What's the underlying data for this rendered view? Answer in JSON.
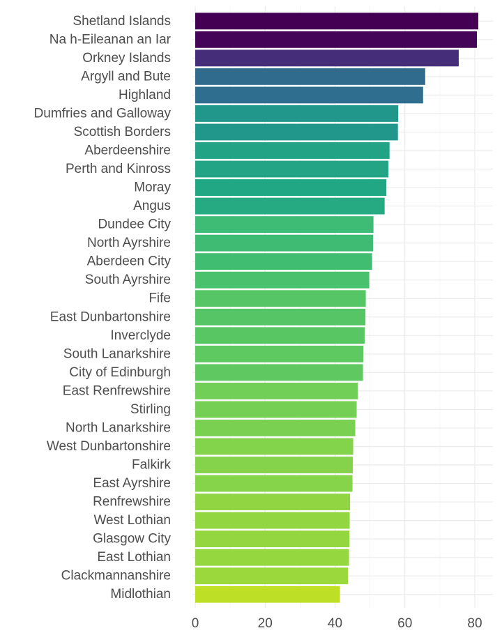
{
  "chart_data": {
    "type": "bar",
    "orientation": "horizontal",
    "categories": [
      "Shetland Islands",
      "Na h-Eileanan an Iar",
      "Orkney Islands",
      "Argyll and Bute",
      "Highland",
      "Dumfries and Galloway",
      "Scottish Borders",
      "Aberdeenshire",
      "Perth and Kinross",
      "Moray",
      "Angus",
      "Dundee City",
      "North Ayrshire",
      "Aberdeen City",
      "South Ayrshire",
      "Fife",
      "East Dunbartonshire",
      "Inverclyde",
      "South Lanarkshire",
      "City of Edinburgh",
      "East Renfrewshire",
      "Stirling",
      "North Lanarkshire",
      "West Dunbartonshire",
      "Falkirk",
      "East Ayrshire",
      "Renfrewshire",
      "West Lothian",
      "Glasgow City",
      "East Lothian",
      "Clackmannanshire",
      "Midlothian"
    ],
    "values": [
      81.0,
      80.6,
      75.4,
      65.8,
      65.2,
      58.1,
      58.0,
      55.6,
      55.3,
      54.7,
      54.2,
      51.0,
      50.9,
      50.6,
      49.8,
      48.8,
      48.7,
      48.5,
      48.1,
      48.0,
      46.5,
      46.2,
      45.8,
      45.2,
      45.1,
      45.0,
      44.3,
      44.2,
      44.1,
      44.0,
      43.7,
      41.4
    ],
    "color_scale": "viridis",
    "color_low": "#bddf26",
    "color_high": "#440154",
    "xlim": [
      0,
      85
    ],
    "x_ticks": [
      0,
      20,
      40,
      60,
      80
    ],
    "xlabel": "",
    "ylabel": "",
    "title": "",
    "grid": true,
    "legend": "none"
  }
}
